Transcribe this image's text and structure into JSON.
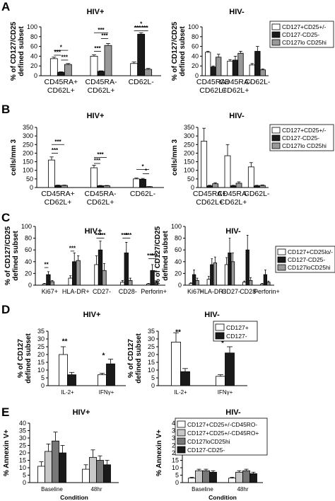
{
  "panel_letters": [
    "A",
    "B",
    "C",
    "D",
    "E"
  ],
  "chart_data": [
    {
      "panel": "A",
      "title": "HIV+",
      "type": "bar",
      "ylabel": "% of CD127/CD25 defined subset",
      "ylim": [
        0,
        100
      ],
      "yticks": [
        0,
        20,
        40,
        60,
        80,
        100
      ],
      "ytick_labels": [
        "0",
        "20",
        "40",
        "60",
        "80",
        "100"
      ],
      "categories": [
        "CD45RA+ CD62L+",
        "CD45RA- CD62L+",
        "CD62L-"
      ],
      "series": [
        {
          "name": "CD127+CD25+/-",
          "color": "#ffffff",
          "values": [
            35,
            40,
            25
          ],
          "errors": [
            3,
            3,
            3
          ]
        },
        {
          "name": "CD127-CD25-",
          "color": "#1a1a1a",
          "values": [
            7,
            9,
            85
          ],
          "errors": [
            1,
            1,
            3
          ]
        },
        {
          "name": "CD127lo CD25hi",
          "color": "#999999",
          "values": [
            23,
            62,
            13
          ],
          "errors": [
            2,
            4,
            2
          ]
        }
      ],
      "annotations": [
        {
          "text": "*",
          "from": [
            0,
            0
          ],
          "to": [
            0,
            2
          ],
          "y": 52
        },
        {
          "text": "***",
          "from": [
            0,
            0
          ],
          "to": [
            0,
            1
          ],
          "y": 42
        },
        {
          "text": "***",
          "from": [
            0,
            1
          ],
          "to": [
            0,
            2
          ],
          "y": 32
        },
        {
          "text": "***",
          "from": [
            1,
            0
          ],
          "to": [
            1,
            2
          ],
          "y": 88
        },
        {
          "text": "***",
          "from": [
            1,
            1
          ],
          "to": [
            1,
            2
          ],
          "y": 76
        },
        {
          "text": "***",
          "from": [
            1,
            0
          ],
          "to": [
            1,
            1
          ],
          "y": 50
        },
        {
          "text": "*",
          "from": [
            2,
            0
          ],
          "to": [
            2,
            2
          ],
          "y": 100
        },
        {
          "text": "***",
          "from": [
            2,
            0
          ],
          "to": [
            2,
            1
          ],
          "y": 92
        },
        {
          "text": "***",
          "from": [
            2,
            1
          ],
          "to": [
            2,
            2
          ],
          "y": 92
        }
      ]
    },
    {
      "panel": "A",
      "title": "HIV-",
      "type": "bar",
      "ylabel": "% of CD127/CD25 defined subset",
      "ylim": [
        0,
        100
      ],
      "yticks": [
        0,
        20,
        40,
        60,
        80,
        100
      ],
      "ytick_labels": [
        "0",
        "20",
        "40",
        "60",
        "80",
        "100"
      ],
      "categories": [
        "CD45RA+ CD62L+",
        "CD45RA- CD62L+",
        "CD62L-"
      ],
      "legend": [
        "CD127+CD25+/-",
        "CD127-CD25-",
        "CD127lo CD25hi"
      ],
      "series": [
        {
          "name": "CD127+CD25+/-",
          "color": "#ffffff",
          "values": [
            48,
            30,
            22
          ],
          "errors": [
            2,
            3,
            3
          ]
        },
        {
          "name": "CD127-CD25-",
          "color": "#1a1a1a",
          "values": [
            18,
            32,
            50
          ],
          "errors": [
            2,
            8,
            10
          ]
        },
        {
          "name": "CD127lo CD25hi",
          "color": "#999999",
          "values": [
            38,
            46,
            12
          ],
          "errors": [
            6,
            4,
            2
          ]
        }
      ],
      "annotations": []
    },
    {
      "panel": "B",
      "title": "HIV+",
      "type": "bar",
      "ylabel": "cells/mm 3",
      "ylim": [
        0,
        350
      ],
      "yticks": [
        0,
        50,
        100,
        150,
        200,
        250,
        300,
        350
      ],
      "ytick_labels": [
        "0",
        "50",
        "100",
        "150",
        "200",
        "250",
        "300",
        "350"
      ],
      "categories": [
        "CD45RA+ CD62L+",
        "CD45RA- CD62L+",
        "CD62L-"
      ],
      "series": [
        {
          "name": "CD127+CD25+/-",
          "color": "#ffffff",
          "values": [
            160,
            115,
            50
          ],
          "errors": [
            18,
            15,
            5
          ]
        },
        {
          "name": "CD127-CD25-",
          "color": "#1a1a1a",
          "values": [
            12,
            10,
            48
          ],
          "errors": [
            2,
            2,
            5
          ]
        },
        {
          "name": "CD127lo CD25hi",
          "color": "#999999",
          "values": [
            12,
            10,
            5
          ],
          "errors": [
            2,
            2,
            1
          ]
        }
      ],
      "annotations": [
        {
          "text": "***",
          "from": [
            0,
            0
          ],
          "to": [
            0,
            2
          ],
          "y": 250
        },
        {
          "text": "***",
          "from": [
            0,
            0
          ],
          "to": [
            0,
            1
          ],
          "y": 200
        },
        {
          "text": "***",
          "from": [
            1,
            0
          ],
          "to": [
            1,
            2
          ],
          "y": 175
        },
        {
          "text": "***",
          "from": [
            1,
            0
          ],
          "to": [
            1,
            1
          ],
          "y": 140
        },
        {
          "text": "*",
          "from": [
            2,
            0
          ],
          "to": [
            2,
            2
          ],
          "y": 105
        },
        {
          "text": "*",
          "from": [
            2,
            1
          ],
          "to": [
            2,
            2
          ],
          "y": 80
        }
      ]
    },
    {
      "panel": "B",
      "title": "HIV-",
      "type": "bar",
      "ylabel": "cells/mm 3",
      "ylim": [
        0,
        350
      ],
      "yticks": [
        0,
        50,
        100,
        150,
        200,
        250,
        300,
        350
      ],
      "ytick_labels": [
        "0",
        "50",
        "100",
        "150",
        "200",
        "250",
        "300",
        "350"
      ],
      "categories": [
        "CD45RA+ CD62L+",
        "CD45RA- CD62L+",
        "CD62L-"
      ],
      "legend": [
        "CD127+CD25+/-",
        "CD127-CD25-",
        "CD127lo CD25hi"
      ],
      "series": [
        {
          "name": "CD127+CD25+/-",
          "color": "#ffffff",
          "values": [
            270,
            185,
            120
          ],
          "errors": [
            75,
            65,
            25
          ]
        },
        {
          "name": "CD127-CD25-",
          "color": "#1a1a1a",
          "values": [
            10,
            10,
            10
          ],
          "errors": [
            3,
            3,
            3
          ]
        },
        {
          "name": "CD127lo CD25hi",
          "color": "#999999",
          "values": [
            22,
            25,
            12
          ],
          "errors": [
            6,
            8,
            3
          ]
        }
      ],
      "annotations": []
    },
    {
      "panel": "C",
      "title": "HIV+",
      "type": "bar",
      "ylabel": "% of CD127/CD25 defined subset",
      "ylim": [
        0,
        100
      ],
      "yticks": [
        0,
        20,
        40,
        60,
        80,
        100
      ],
      "ytick_labels": [
        "0",
        "20",
        "40",
        "60",
        "80",
        "100"
      ],
      "categories": [
        "Ki67+",
        "HLA-DR+",
        "CD27-",
        "CD28-",
        "Perforin+"
      ],
      "series": [
        {
          "name": "CD127+CD25lo/-",
          "color": "#ffffff",
          "values": [
            2,
            12,
            35,
            5,
            2
          ],
          "errors": [
            1,
            4,
            15,
            3,
            1
          ]
        },
        {
          "name": "CD127-CD25-",
          "color": "#1a1a1a",
          "values": [
            18,
            40,
            60,
            55,
            25
          ],
          "errors": [
            5,
            15,
            15,
            18,
            10
          ]
        },
        {
          "name": "CD127loCD25hi",
          "color": "#999999",
          "values": [
            6,
            42,
            25,
            8,
            5
          ],
          "errors": [
            2,
            8,
            12,
            4,
            2
          ]
        }
      ],
      "annotations": [
        {
          "text": "**",
          "from": [
            0,
            0
          ],
          "to": [
            0,
            1
          ],
          "y": 30
        },
        {
          "text": "***",
          "from": [
            1,
            0
          ],
          "to": [
            1,
            1
          ],
          "y": 58
        },
        {
          "text": "***",
          "from": [
            2,
            0
          ],
          "to": [
            2,
            1
          ],
          "y": 80
        },
        {
          "text": "***",
          "from": [
            2,
            1
          ],
          "to": [
            2,
            2
          ],
          "y": 80
        },
        {
          "text": "***",
          "from": [
            3,
            0
          ],
          "to": [
            3,
            1
          ],
          "y": 80
        },
        {
          "text": "***",
          "from": [
            3,
            1
          ],
          "to": [
            3,
            2
          ],
          "y": 80
        },
        {
          "text": "***",
          "from": [
            4,
            0
          ],
          "to": [
            4,
            1
          ],
          "y": 45
        },
        {
          "text": "***",
          "from": [
            4,
            1
          ],
          "to": [
            4,
            2
          ],
          "y": 45
        }
      ]
    },
    {
      "panel": "C",
      "title": "HIV-",
      "type": "bar",
      "ylabel": "% of CD127/CD25 defined subset",
      "ylim": [
        0,
        100
      ],
      "yticks": [
        0,
        20,
        40,
        60,
        80,
        100
      ],
      "ytick_labels": [
        "0",
        "20",
        "40",
        "60",
        "80",
        "100"
      ],
      "categories": [
        "Ki67+",
        "HLA-DR+",
        "CD27-",
        "CD28-",
        "Perforin+"
      ],
      "legend": [
        "CD127+CD25lo/-",
        "CD127-CD25-",
        "CD127loCD25hi"
      ],
      "series": [
        {
          "name": "CD127+CD25lo/-",
          "color": "#ffffff",
          "values": [
            3,
            10,
            35,
            5,
            2
          ],
          "errors": [
            1,
            5,
            12,
            2,
            1
          ]
        },
        {
          "name": "CD127-CD25-",
          "color": "#1a1a1a",
          "values": [
            18,
            35,
            55,
            60,
            18
          ],
          "errors": [
            8,
            10,
            25,
            25,
            8
          ]
        },
        {
          "name": "CD127loCD25hi",
          "color": "#999999",
          "values": [
            8,
            38,
            40,
            8,
            5
          ],
          "errors": [
            4,
            10,
            15,
            5,
            2
          ]
        }
      ],
      "annotations": []
    },
    {
      "panel": "D",
      "title": "HIV+",
      "type": "bar",
      "ylabel": "% of CD127 defined subset",
      "ylim": [
        0,
        35
      ],
      "yticks": [
        0,
        5,
        10,
        15,
        20,
        25,
        30,
        35
      ],
      "ytick_labels": [
        "0",
        "5",
        "10",
        "15",
        "20",
        "25",
        "30",
        "35"
      ],
      "categories": [
        "IL-2+",
        "IFNγ+"
      ],
      "series": [
        {
          "name": "CD127+",
          "color": "#ffffff",
          "values": [
            20,
            7
          ],
          "errors": [
            5,
            1
          ]
        },
        {
          "name": "CD127-",
          "color": "#1a1a1a",
          "values": [
            7,
            14
          ],
          "errors": [
            1.5,
            3
          ]
        }
      ],
      "annotations": [
        {
          "text": "**",
          "over": [
            0,
            1
          ],
          "y": 27
        },
        {
          "text": "*",
          "over": [
            1,
            1
          ],
          "y": 18
        }
      ]
    },
    {
      "panel": "D",
      "title": "HIV-",
      "type": "bar",
      "ylabel": "% of CD127 defined subset",
      "ylim": [
        0,
        35
      ],
      "yticks": [
        0,
        5,
        10,
        15,
        20,
        25,
        30,
        35
      ],
      "ytick_labels": [
        "0",
        "5",
        "10",
        "15",
        "20",
        "25",
        "30",
        "35"
      ],
      "categories": [
        "IL-2+",
        "IFNγ+"
      ],
      "legend": [
        "CD127+",
        "CD127-"
      ],
      "series": [
        {
          "name": "CD127+",
          "color": "#ffffff",
          "values": [
            28,
            6
          ],
          "errors": [
            6,
            1
          ]
        },
        {
          "name": "CD127-",
          "color": "#1a1a1a",
          "values": [
            9,
            21
          ],
          "errors": [
            2,
            4
          ]
        }
      ],
      "annotations": [
        {
          "text": "**",
          "over": [
            0,
            1
          ],
          "y": 33
        },
        {
          "text": "*",
          "over": [
            1,
            1
          ],
          "y": 26
        }
      ]
    },
    {
      "panel": "E",
      "title": "HIV+",
      "type": "bar",
      "ylabel": "% Annexin V+",
      "xlabel": "Condition",
      "ylim": [
        0,
        40
      ],
      "yticks": [
        0,
        5,
        10,
        15,
        20,
        25,
        30,
        35,
        40
      ],
      "ytick_labels": [
        "0",
        "5",
        "10",
        "15",
        "20",
        "25",
        "30",
        "35",
        "40"
      ],
      "categories": [
        "Baseline",
        "48hr"
      ],
      "series": [
        {
          "name": "CD127+CD25+/-CD45RO-",
          "color": "#ffffff",
          "values": [
            11,
            9
          ],
          "errors": [
            3,
            3
          ]
        },
        {
          "name": "CD127+CD25+/-CD45RO+",
          "color": "#c8c8c8",
          "values": [
            21,
            17
          ],
          "errors": [
            5,
            5
          ]
        },
        {
          "name": "CD127loCD25hi",
          "color": "#777777",
          "values": [
            28,
            15
          ],
          "errors": [
            6,
            3
          ]
        },
        {
          "name": "CD127-CD25-",
          "color": "#1a1a1a",
          "values": [
            20,
            12
          ],
          "errors": [
            5,
            3
          ]
        }
      ],
      "annotations": []
    },
    {
      "panel": "E",
      "title": "HIV-",
      "type": "bar",
      "ylabel": "% Annexin V+",
      "xlabel": "Condition",
      "ylim": [
        0,
        40
      ],
      "yticks": [
        0,
        5,
        10,
        15,
        20,
        25,
        30,
        35,
        40
      ],
      "ytick_labels": [
        "0",
        "5",
        "10",
        "15",
        "20",
        "25",
        "30",
        "35",
        "40"
      ],
      "categories": [
        "Baseline",
        "48hr"
      ],
      "legend": [
        "CD127+CD25+/-CD45RO-",
        "CD127+CD25+/-CD45RO+",
        "CD127loCD25hi",
        "CD127-CD25-"
      ],
      "series": [
        {
          "name": "CD127+CD25+/-CD45RO-",
          "color": "#ffffff",
          "values": [
            3,
            3
          ],
          "errors": [
            0.6,
            0.6
          ]
        },
        {
          "name": "CD127+CD25+/-CD45RO+",
          "color": "#c8c8c8",
          "values": [
            8,
            7
          ],
          "errors": [
            1,
            1
          ]
        },
        {
          "name": "CD127loCD25hi",
          "color": "#777777",
          "values": [
            8,
            8
          ],
          "errors": [
            1,
            1
          ]
        },
        {
          "name": "CD127-CD25-",
          "color": "#1a1a1a",
          "values": [
            7,
            6
          ],
          "errors": [
            1,
            1
          ]
        }
      ],
      "annotations": []
    }
  ]
}
